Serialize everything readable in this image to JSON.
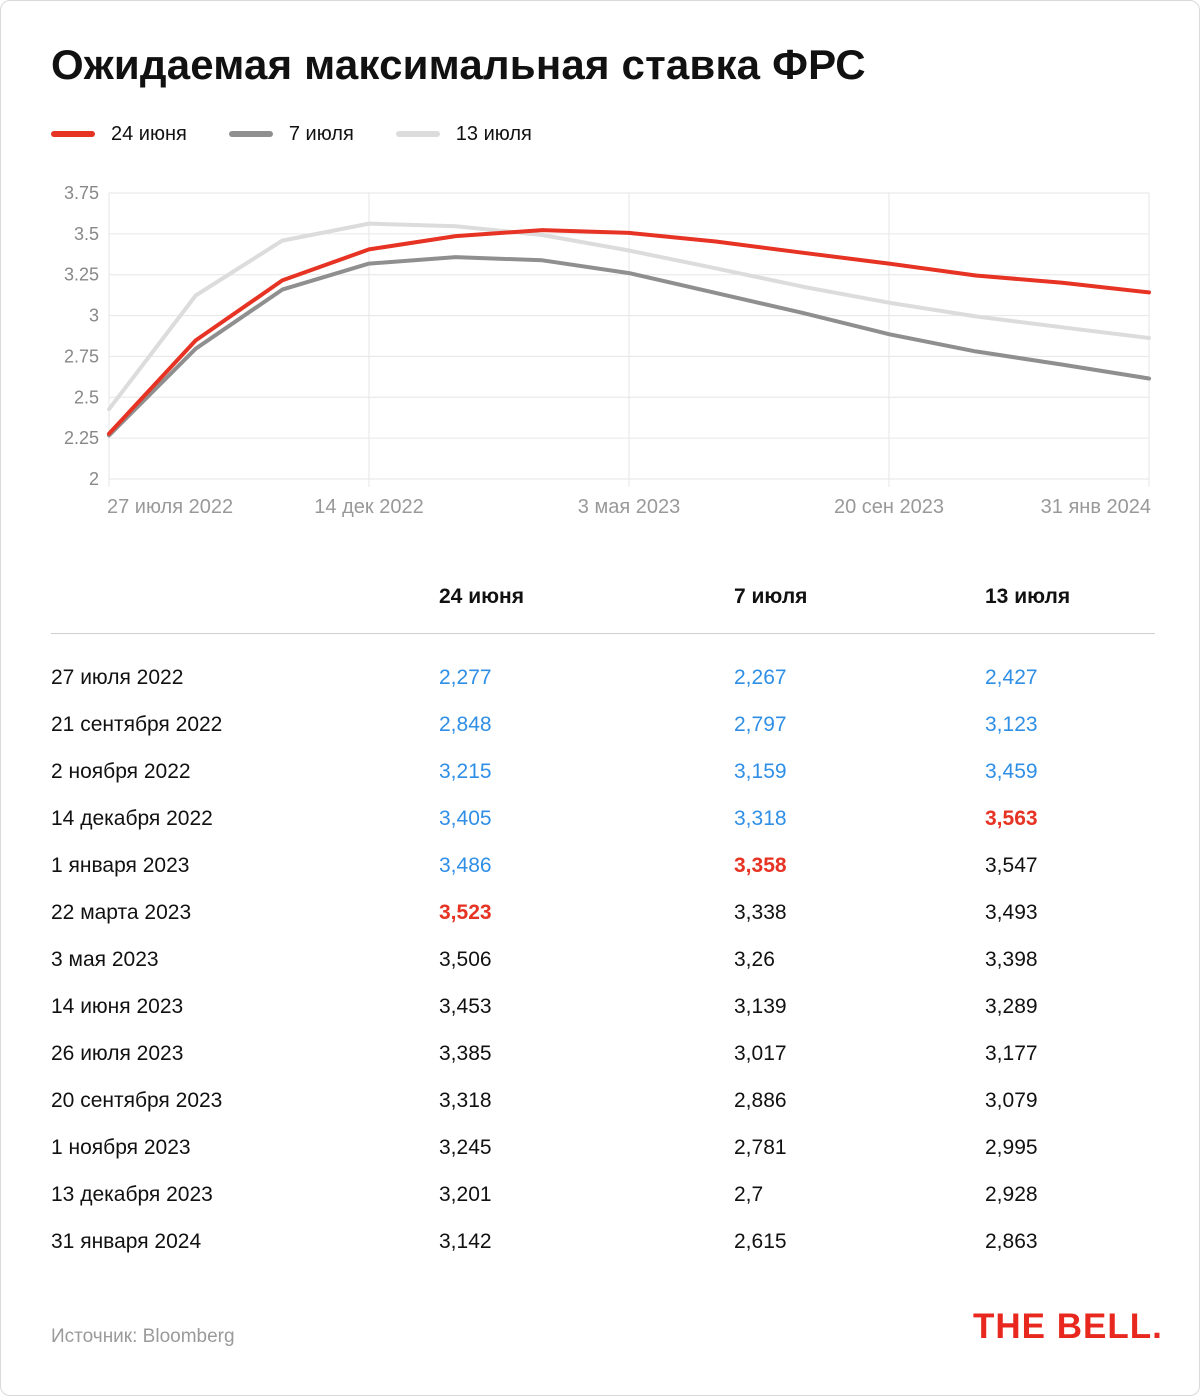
{
  "title": "Ожидаемая максимальная ставка ФРС",
  "legend": [
    {
      "label": "24 июня",
      "color": "#e63323"
    },
    {
      "label": "7 июля",
      "color": "#8f8f8f"
    },
    {
      "label": "13 июля",
      "color": "#dcdcdc"
    }
  ],
  "chart_data": {
    "type": "line",
    "dates": [
      "27 июля 2022",
      "21 сентября 2022",
      "2 ноября 2022",
      "14 декабря 2022",
      "1 января 2023",
      "22 марта 2023",
      "3 мая 2023",
      "14 июня 2023",
      "26 июля 2023",
      "20 сентября 2023",
      "1 ноября 2023",
      "13 декабря 2023",
      "31 января 2024"
    ],
    "series": [
      {
        "name": "24 июня",
        "color": "#e63323",
        "values": [
          2.277,
          2.848,
          3.215,
          3.405,
          3.486,
          3.523,
          3.506,
          3.453,
          3.385,
          3.318,
          3.245,
          3.201,
          3.142
        ]
      },
      {
        "name": "7 июля",
        "color": "#8f8f8f",
        "values": [
          2.267,
          2.797,
          3.159,
          3.318,
          3.358,
          3.338,
          3.26,
          3.139,
          3.017,
          2.886,
          2.781,
          2.7,
          2.615
        ]
      },
      {
        "name": "13 июля",
        "color": "#dcdcdc",
        "values": [
          2.427,
          3.123,
          3.459,
          3.563,
          3.547,
          3.493,
          3.398,
          3.289,
          3.177,
          3.079,
          2.995,
          2.928,
          2.863
        ]
      }
    ],
    "ylim": [
      2,
      3.75
    ],
    "yticks": [
      "3.75",
      "3.5",
      "3.25",
      "3",
      "2.75",
      "2.5",
      "2.25",
      "2"
    ],
    "xticks": [
      {
        "label": "27 июля 2022",
        "index": 0
      },
      {
        "label": "14 дек 2022",
        "index": 3
      },
      {
        "label": "3 мая 2023",
        "index": 6
      },
      {
        "label": "20 сен 2023",
        "index": 9
      },
      {
        "label": "31 янв 2024",
        "index": 12
      }
    ],
    "grid": true
  },
  "table": {
    "headers": [
      "",
      "24 июня",
      "7 июля",
      "13 июля"
    ],
    "rows": [
      {
        "date": "27 июля 2022",
        "v1": "2,277",
        "v2": "2,267",
        "v3": "2,427"
      },
      {
        "date": "21 сентября 2022",
        "v1": "2,848",
        "v2": "2,797",
        "v3": "3,123"
      },
      {
        "date": "2 ноября 2022",
        "v1": "3,215",
        "v2": "3,159",
        "v3": "3,459"
      },
      {
        "date": "14 декабря 2022",
        "v1": "3,405",
        "v2": "3,318",
        "v3": "3,563"
      },
      {
        "date": "1 января 2023",
        "v1": "3,486",
        "v2": "3,358",
        "v3": "3,547"
      },
      {
        "date": "22 марта 2023",
        "v1": "3,523",
        "v2": "3,338",
        "v3": "3,493"
      },
      {
        "date": "3 мая 2023",
        "v1": "3,506",
        "v2": "3,26",
        "v3": "3,398"
      },
      {
        "date": "14 июня 2023",
        "v1": "3,453",
        "v2": "3,139",
        "v3": "3,289"
      },
      {
        "date": "26 июля 2023",
        "v1": "3,385",
        "v2": "3,017",
        "v3": "3,177"
      },
      {
        "date": "20 сентября 2023",
        "v1": "3,318",
        "v2": "2,886",
        "v3": "3,079"
      },
      {
        "date": "1 ноября 2023",
        "v1": "3,245",
        "v2": "2,781",
        "v3": "2,995"
      },
      {
        "date": "13 декабря 2023",
        "v1": "3,201",
        "v2": "2,7",
        "v3": "2,928"
      },
      {
        "date": "31 января 2024",
        "v1": "3,142",
        "v2": "2,615",
        "v3": "2,863"
      }
    ],
    "colors": {
      "rising": "#2f8fe6",
      "peak": "#e63323"
    }
  },
  "footer": {
    "source": "Источник: Bloomberg",
    "logo": "THE BELL."
  }
}
